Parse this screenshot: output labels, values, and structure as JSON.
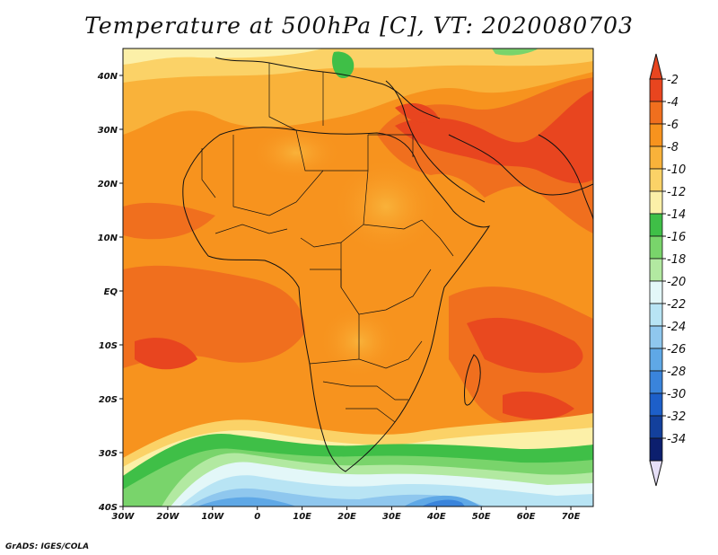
{
  "title": "Temperature at 500hPa [C], VT: 2020080703",
  "credit": "GrADS: IGES/COLA",
  "map": {
    "lon_range": [
      -30,
      75
    ],
    "lat_range": [
      -40,
      45
    ],
    "lat_ticks": [
      {
        "value": 40,
        "label": "40N"
      },
      {
        "value": 30,
        "label": "30N"
      },
      {
        "value": 20,
        "label": "20N"
      },
      {
        "value": 10,
        "label": "10N"
      },
      {
        "value": 0,
        "label": "EQ"
      },
      {
        "value": -10,
        "label": "10S"
      },
      {
        "value": -20,
        "label": "20S"
      },
      {
        "value": -30,
        "label": "30S"
      },
      {
        "value": -40,
        "label": "40S"
      }
    ],
    "lon_ticks": [
      {
        "value": -30,
        "label": "30W"
      },
      {
        "value": -20,
        "label": "20W"
      },
      {
        "value": -10,
        "label": "10W"
      },
      {
        "value": 0,
        "label": "0"
      },
      {
        "value": 10,
        "label": "10E"
      },
      {
        "value": 20,
        "label": "20E"
      },
      {
        "value": 30,
        "label": "30E"
      },
      {
        "value": 40,
        "label": "40E"
      },
      {
        "value": 50,
        "label": "50E"
      },
      {
        "value": 60,
        "label": "60E"
      },
      {
        "value": 70,
        "label": "70E"
      }
    ]
  },
  "colorbar": {
    "levels": [
      "-2",
      "-4",
      "-6",
      "-8",
      "-10",
      "-12",
      "-14",
      "-16",
      "-18",
      "-20",
      "-22",
      "-24",
      "-26",
      "-28",
      "-30",
      "-32",
      "-34"
    ],
    "colors": [
      "#e8451f",
      "#f06f1e",
      "#f7931e",
      "#f9b23a",
      "#fbd267",
      "#fcf0a8",
      "#3fbf47",
      "#79d46b",
      "#b2e9a1",
      "#e3f7f8",
      "#b8e4f4",
      "#8fc7ee",
      "#5fa8e6",
      "#3a84db",
      "#1d5fc9",
      "#13409c",
      "#0c1f6e"
    ],
    "over_color": "#e8451f",
    "under_color": "#e6dff7"
  }
}
